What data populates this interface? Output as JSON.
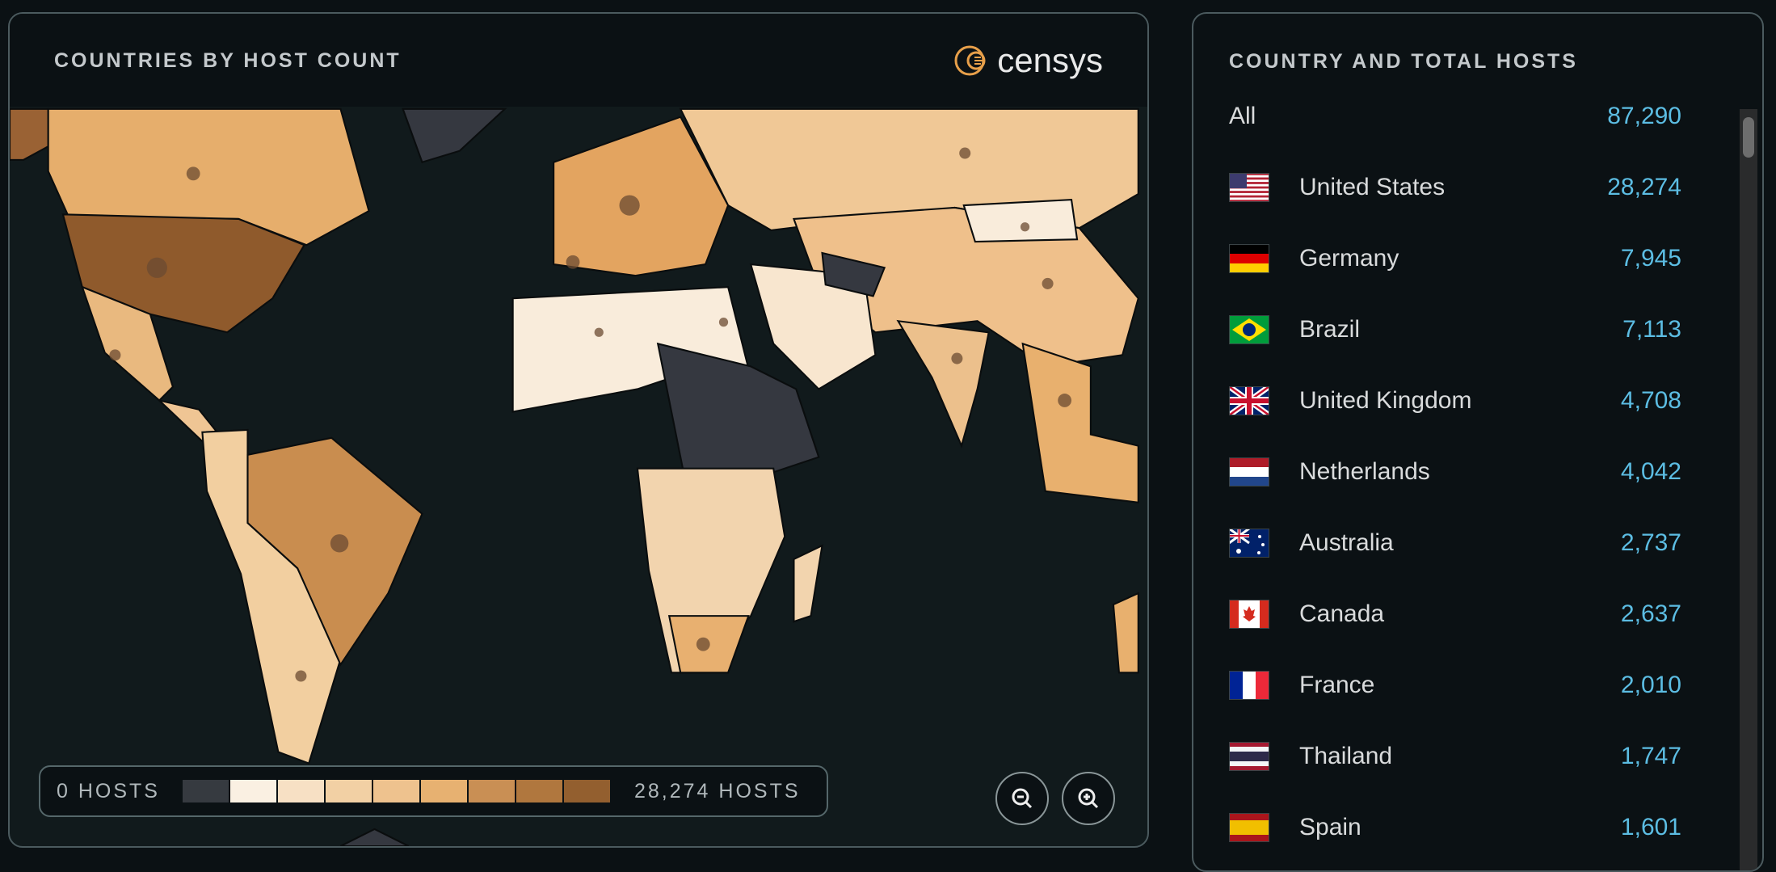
{
  "map_panel": {
    "title": "COUNTRIES BY HOST COUNT",
    "logo_text": "censys",
    "legend": {
      "min_label": "0 HOSTS",
      "max_label": "28,274 HOSTS",
      "colors": [
        "#363a40",
        "#faf0e2",
        "#f7e0c4",
        "#f2d0a4",
        "#eec28e",
        "#e7b171",
        "#c98f54",
        "#b0773e",
        "#935f2f"
      ]
    },
    "zoom_out_icon": "zoom-out-icon",
    "zoom_in_icon": "zoom-in-icon"
  },
  "list_panel": {
    "title": "COUNTRY AND TOTAL HOSTS",
    "all": {
      "name": "All",
      "value": "87,290"
    },
    "countries": [
      {
        "name": "United States",
        "value": "28,274",
        "flag": "us"
      },
      {
        "name": "Germany",
        "value": "7,945",
        "flag": "de"
      },
      {
        "name": "Brazil",
        "value": "7,113",
        "flag": "br"
      },
      {
        "name": "United Kingdom",
        "value": "4,708",
        "flag": "gb"
      },
      {
        "name": "Netherlands",
        "value": "4,042",
        "flag": "nl"
      },
      {
        "name": "Australia",
        "value": "2,737",
        "flag": "au"
      },
      {
        "name": "Canada",
        "value": "2,637",
        "flag": "ca"
      },
      {
        "name": "France",
        "value": "2,010",
        "flag": "fr"
      },
      {
        "name": "Thailand",
        "value": "1,747",
        "flag": "th"
      },
      {
        "name": "Spain",
        "value": "1,601",
        "flag": "es"
      }
    ]
  }
}
